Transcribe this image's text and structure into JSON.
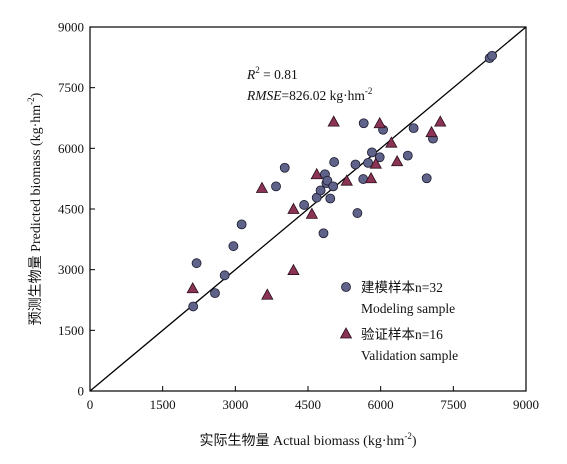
{
  "chart_data": {
    "type": "scatter",
    "xlabel": "实际生物量 Actual biomass (kg·hm",
    "xlabel_sup": "-2",
    "xlabel_tail": ")",
    "ylabel": "预测生物量 Predicted biomass (kg·hm",
    "ylabel_sup": "-2",
    "ylabel_tail": ")",
    "xlim": [
      0,
      9000
    ],
    "ylim": [
      0,
      9000
    ],
    "xticks": [
      0,
      1500,
      3000,
      4500,
      6000,
      7500,
      9000
    ],
    "yticks": [
      0,
      1500,
      3000,
      4500,
      6000,
      7500,
      9000
    ],
    "grid": false,
    "reference_line": "1:1",
    "annotation": {
      "r2_italic": "R",
      "r2_sup": "2",
      "r2_rest": " = 0.81",
      "rmse_italic": "RMSE",
      "rmse_rest": "=826.02 kg·hm",
      "rmse_sup": "-2"
    },
    "legend_position": "lower-right",
    "series": [
      {
        "name": "建模样本n=32",
        "name_en": "Modeling sample",
        "marker": "circle",
        "color": "#5f6389",
        "points": [
          [
            2130,
            2090
          ],
          [
            2200,
            3160
          ],
          [
            2580,
            2420
          ],
          [
            2780,
            2860
          ],
          [
            2960,
            3580
          ],
          [
            3130,
            4120
          ],
          [
            3840,
            5060
          ],
          [
            4020,
            5520
          ],
          [
            4420,
            4600
          ],
          [
            4680,
            4780
          ],
          [
            4760,
            4960
          ],
          [
            4820,
            3900
          ],
          [
            4850,
            5360
          ],
          [
            4880,
            5140
          ],
          [
            4900,
            5200
          ],
          [
            4960,
            4760
          ],
          [
            5020,
            5060
          ],
          [
            5040,
            5660
          ],
          [
            5480,
            5600
          ],
          [
            5520,
            4400
          ],
          [
            5640,
            5240
          ],
          [
            5650,
            6620
          ],
          [
            5740,
            5640
          ],
          [
            5820,
            5900
          ],
          [
            5980,
            5780
          ],
          [
            6050,
            6460
          ],
          [
            6560,
            5820
          ],
          [
            6680,
            6500
          ],
          [
            6950,
            5260
          ],
          [
            7080,
            6240
          ],
          [
            8250,
            8230
          ],
          [
            8300,
            8290
          ]
        ]
      },
      {
        "name": "验证样本n=16",
        "name_en": "Validation sample",
        "marker": "triangle",
        "color": "#8a3355",
        "points": [
          [
            2120,
            2540
          ],
          [
            3550,
            5020
          ],
          [
            3660,
            2380
          ],
          [
            4200,
            4500
          ],
          [
            4200,
            2990
          ],
          [
            4580,
            4380
          ],
          [
            4680,
            5360
          ],
          [
            5030,
            6660
          ],
          [
            5300,
            5200
          ],
          [
            5800,
            5260
          ],
          [
            5900,
            5620
          ],
          [
            5980,
            6620
          ],
          [
            6220,
            6140
          ],
          [
            6340,
            5680
          ],
          [
            7050,
            6400
          ],
          [
            7230,
            6660
          ]
        ]
      }
    ]
  }
}
